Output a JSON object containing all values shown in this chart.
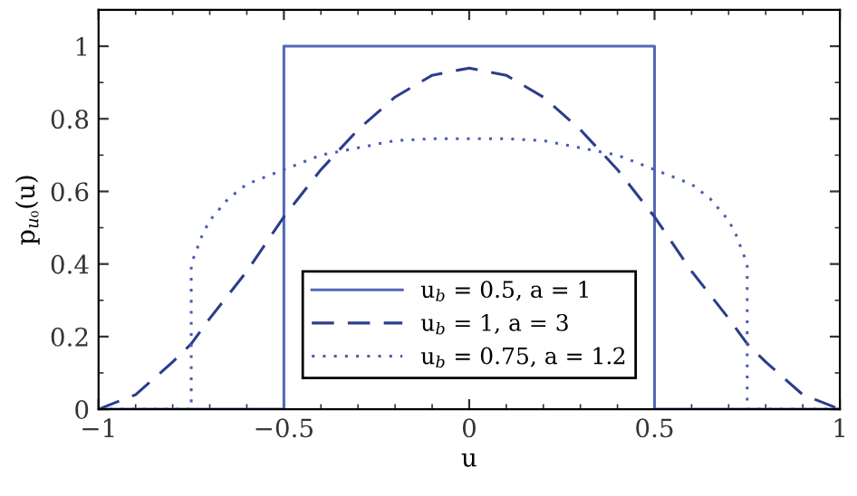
{
  "chart_data": {
    "type": "line",
    "xlabel": "u",
    "ylabel": "p$_{u₀}$(u)",
    "xlim": [
      -1,
      1
    ],
    "ylim": [
      0,
      1.1
    ],
    "xticks": [
      {
        "value": -1,
        "label": "−1"
      },
      {
        "value": -0.5,
        "label": "−0.5"
      },
      0,
      0.5,
      1
    ],
    "yticks": [
      0,
      0.2,
      0.4,
      0.6,
      0.8,
      1
    ],
    "grid": false,
    "legend": "bottom",
    "marker": "none",
    "series": [
      {
        "name": "u$_{b}$ = 0.5, a = 1",
        "color": "#5468b4",
        "line_style": "solid",
        "x": [
          -1,
          -0.5,
          -0.5,
          0.5,
          0.5,
          1
        ],
        "values": [
          0,
          0,
          1,
          1,
          0,
          0
        ]
      },
      {
        "name": "u$_{b}$ = 1, a = 3",
        "color": "#2c3d8c",
        "line_style": "dashed",
        "x": [
          -1,
          -0.9,
          -0.8,
          -0.75,
          -0.7,
          -0.6,
          -0.5,
          -0.4,
          -0.3,
          -0.2,
          -0.1,
          0,
          0.1,
          0.2,
          0.3,
          0.4,
          0.5,
          0.6,
          0.7,
          0.75,
          0.8,
          0.9,
          1
        ],
        "values": [
          0,
          0.04,
          0.13,
          0.18,
          0.25,
          0.38,
          0.53,
          0.66,
          0.77,
          0.86,
          0.92,
          0.94,
          0.92,
          0.86,
          0.77,
          0.66,
          0.53,
          0.38,
          0.25,
          0.18,
          0.13,
          0.04,
          0
        ]
      },
      {
        "name": "u$_{b}$ = 0.75, a = 1.2",
        "color": "#4a5db0",
        "line_style": "dotted",
        "x": [
          -1,
          -0.75,
          -0.75,
          -0.72,
          -0.7,
          -0.65,
          -0.6,
          -0.5,
          -0.4,
          -0.3,
          -0.2,
          -0.1,
          0,
          0.1,
          0.2,
          0.3,
          0.4,
          0.5,
          0.6,
          0.65,
          0.7,
          0.72,
          0.75,
          0.75,
          1
        ],
        "values": [
          0,
          0,
          0.4,
          0.48,
          0.52,
          0.58,
          0.62,
          0.66,
          0.7,
          0.72,
          0.74,
          0.745,
          0.745,
          0.745,
          0.74,
          0.72,
          0.7,
          0.66,
          0.62,
          0.58,
          0.52,
          0.48,
          0.4,
          0,
          0
        ]
      }
    ]
  }
}
